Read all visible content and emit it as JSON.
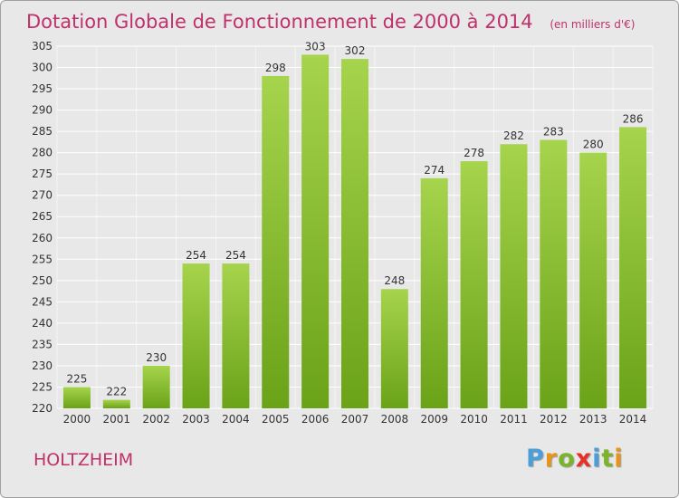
{
  "title": "Dotation Globale de Fonctionnement de 2000 à 2014",
  "unit": "(en milliers d'€)",
  "commune": "HOLTZHEIM",
  "logo": {
    "letters": [
      "P",
      "r",
      "o",
      "x",
      "i",
      "t",
      "i"
    ],
    "colors": [
      "#4a9fd8",
      "#e89418",
      "#7ab528",
      "#e8302a",
      "#4a9fd8",
      "#7ab528",
      "#e89418"
    ]
  },
  "colors": {
    "bar_light": "#a6d44c",
    "bar_dark": "#6aa218",
    "grid": "#ffffff",
    "title": "#c0306a"
  },
  "chart_data": {
    "type": "bar",
    "title": "Dotation Globale de Fonctionnement de 2000 à 2014",
    "subtitle": "(en milliers d'€)",
    "categories": [
      "2000",
      "2001",
      "2002",
      "2003",
      "2004",
      "2005",
      "2006",
      "2007",
      "2008",
      "2009",
      "2010",
      "2011",
      "2012",
      "2013",
      "2014"
    ],
    "values": [
      225,
      222,
      230,
      254,
      254,
      298,
      303,
      302,
      248,
      274,
      278,
      282,
      283,
      280,
      286
    ],
    "ylim": [
      220,
      305
    ],
    "yticks": [
      220,
      225,
      230,
      235,
      240,
      245,
      250,
      255,
      260,
      265,
      270,
      275,
      280,
      285,
      290,
      295,
      300,
      305
    ],
    "grid": true,
    "legend": "none"
  }
}
